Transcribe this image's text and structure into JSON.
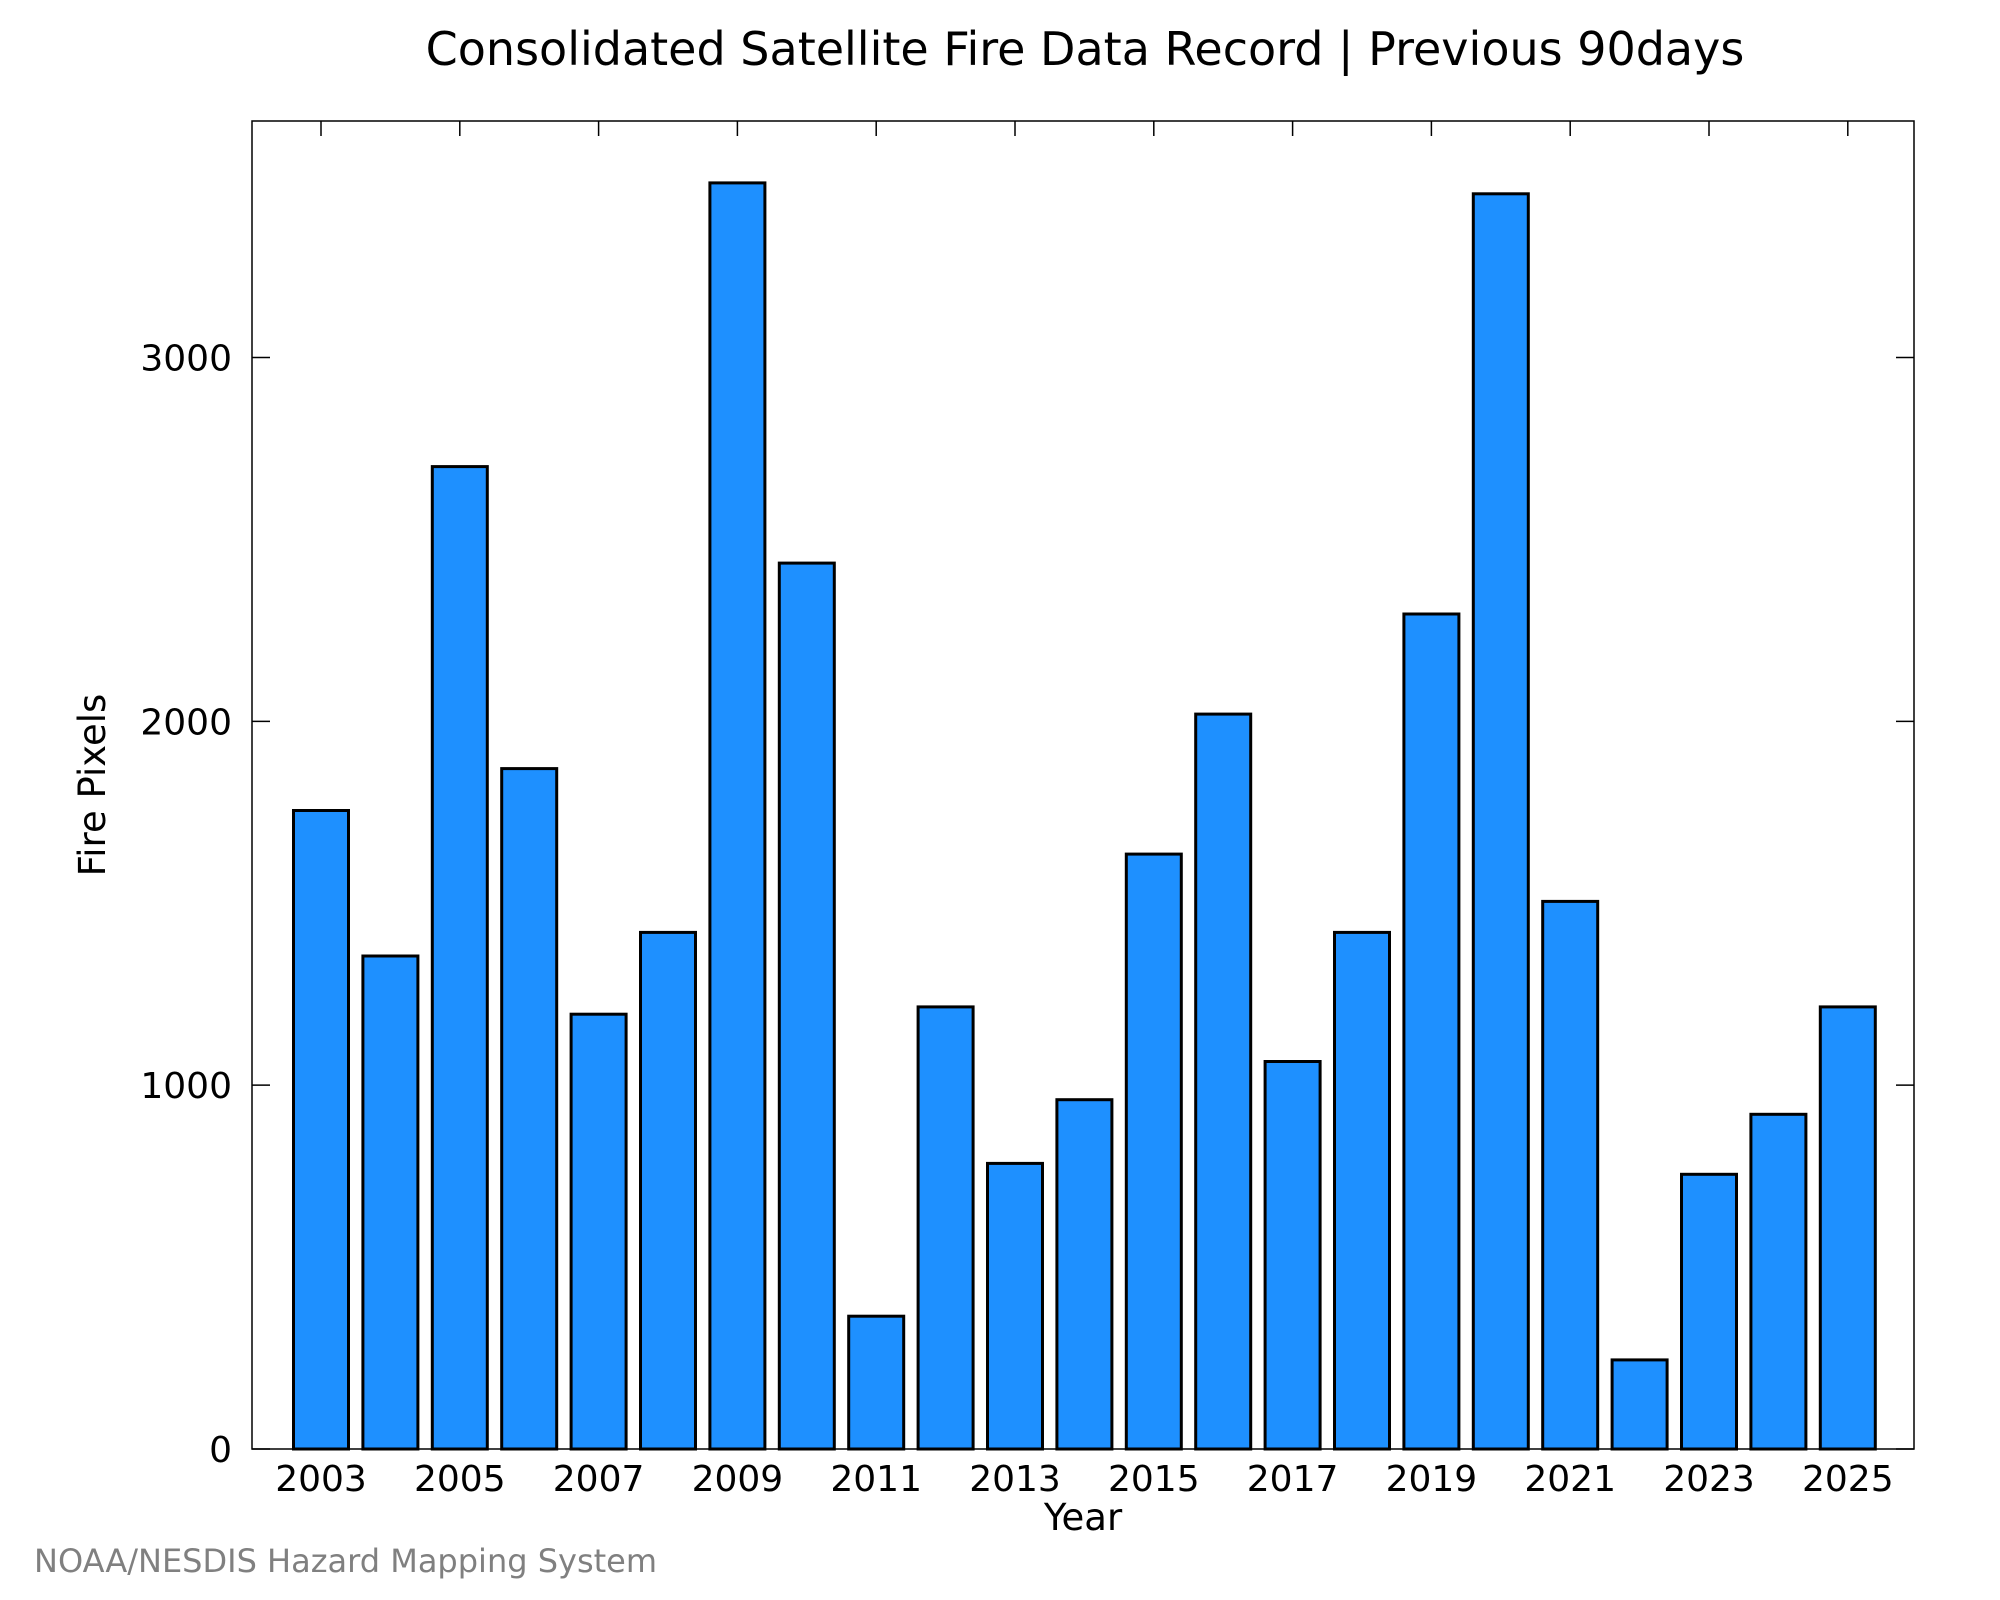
{
  "chart_data": {
    "type": "bar",
    "title": "Consolidated Satellite Fire Data Record | Previous 90days",
    "xlabel": "Year",
    "ylabel": "Fire Pixels",
    "categories": [
      "2003",
      "2004",
      "2005",
      "2006",
      "2007",
      "2008",
      "2009",
      "2010",
      "2011",
      "2012",
      "2013",
      "2014",
      "2015",
      "2016",
      "2017",
      "2018",
      "2019",
      "2020",
      "2021",
      "2022",
      "2023",
      "2024",
      "2025"
    ],
    "values": [
      1755,
      1355,
      2700,
      1870,
      1195,
      1420,
      3480,
      2435,
      365,
      1215,
      785,
      960,
      1635,
      2020,
      1065,
      1420,
      2295,
      3450,
      1505,
      245,
      755,
      920,
      1215
    ],
    "x_tick_labels": [
      "2003",
      "2005",
      "2007",
      "2009",
      "2011",
      "2013",
      "2015",
      "2017",
      "2019",
      "2021",
      "2023",
      "2025"
    ],
    "y_ticks": [
      0,
      1000,
      2000,
      3000
    ],
    "ylim": [
      0,
      3650
    ],
    "grid": false,
    "legend": "none",
    "bar_color": "#1e90ff",
    "bar_edge_color": "#000000"
  },
  "footer": {
    "credit": "NOAA/NESDIS Hazard Mapping System"
  }
}
